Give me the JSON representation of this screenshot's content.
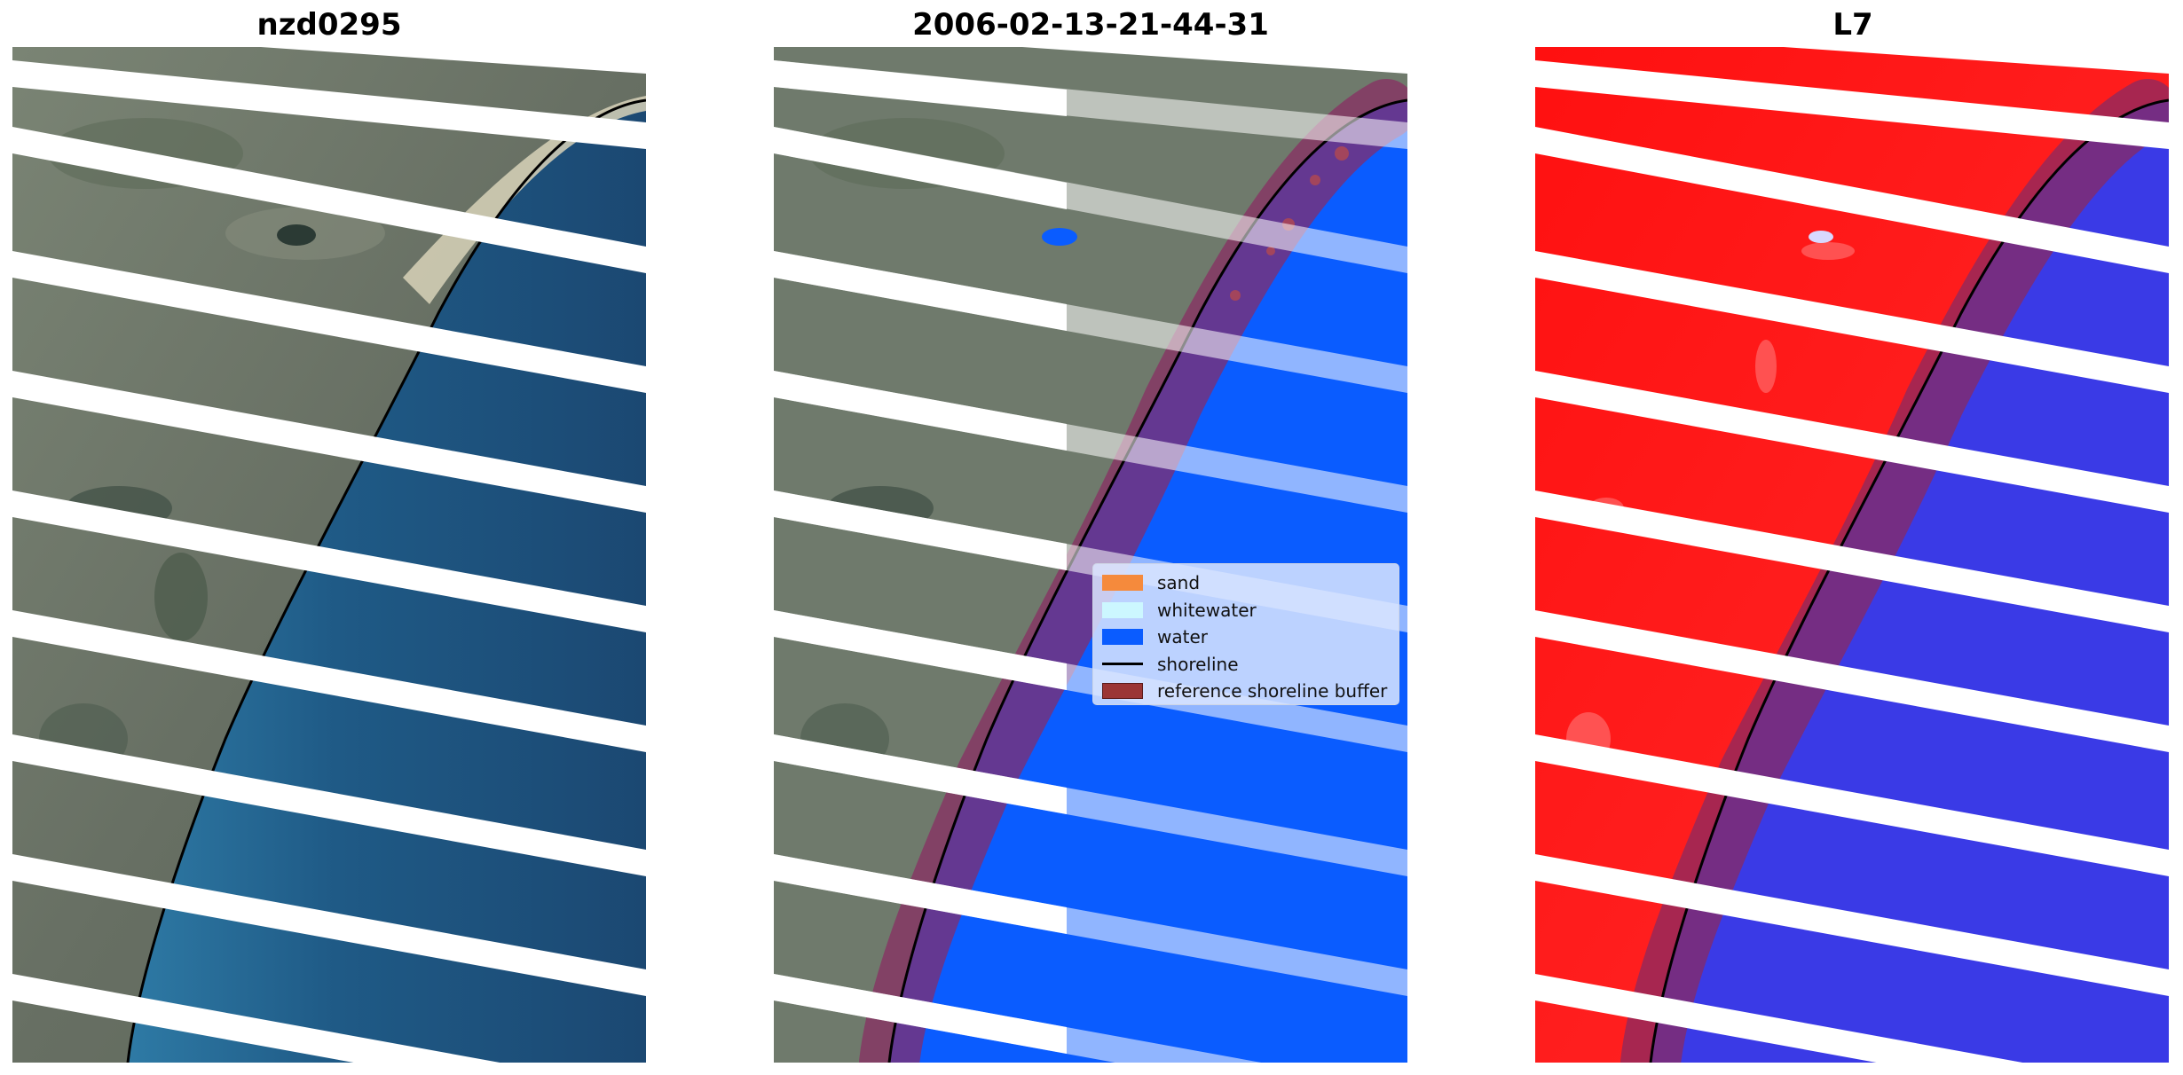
{
  "panels": [
    {
      "id": "rgb",
      "title": "nzd0295"
    },
    {
      "id": "classified",
      "title": "2006-02-13-21-44-31"
    },
    {
      "id": "index",
      "title": "L7"
    }
  ],
  "legend": {
    "items": [
      {
        "label": "sand",
        "color": "#f58a3c",
        "kind": "patch"
      },
      {
        "label": "whitewater",
        "color": "#ccf7ff",
        "kind": "patch"
      },
      {
        "label": "water",
        "color": "#0a5cff",
        "kind": "patch"
      },
      {
        "label": "shoreline",
        "color": "#000000",
        "kind": "line"
      },
      {
        "label": "reference shoreline buffer",
        "color": "#9b3535",
        "kind": "patch"
      }
    ]
  },
  "colors": {
    "land": "#6f7a6c",
    "ocean": "#1f5a86",
    "classified_water": "#0a5cff",
    "index_land": "#ff1414",
    "index_water": "#3a3ae6",
    "buffer": "#8a2a62"
  }
}
